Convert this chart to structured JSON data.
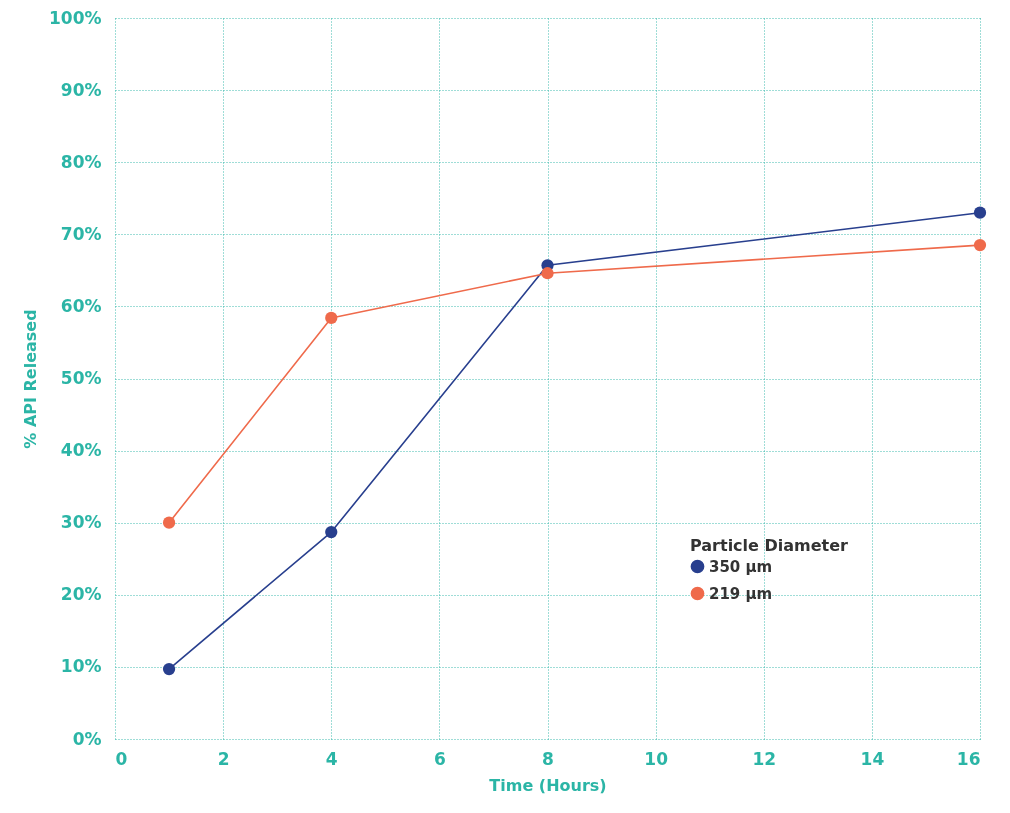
{
  "chart_data": {
    "type": "line",
    "xlabel": "Time (Hours)",
    "ylabel": "% API Released",
    "legend_title": "Particle Diameter",
    "x": [
      1,
      4,
      8,
      16
    ],
    "series": [
      {
        "name": "350 µm",
        "color": "#283f8e",
        "values": [
          9.7,
          28.7,
          65.7,
          73.0
        ]
      },
      {
        "name": "219 µm",
        "color": "#ef6a4b",
        "values": [
          30.0,
          58.4,
          64.6,
          68.5
        ]
      }
    ],
    "xlim": [
      0,
      16
    ],
    "xticks": [
      0,
      2,
      4,
      6,
      8,
      10,
      12,
      14,
      16
    ],
    "ylim": [
      0,
      100
    ],
    "yticks": [
      {
        "value": 0,
        "label": "0%"
      },
      {
        "value": 10,
        "label": "10%"
      },
      {
        "value": 20,
        "label": "20%"
      },
      {
        "value": 30,
        "label": "30%"
      },
      {
        "value": 40,
        "label": "40%"
      },
      {
        "value": 50,
        "label": "50%"
      },
      {
        "value": 60,
        "label": "60%"
      },
      {
        "value": 70,
        "label": "70%"
      },
      {
        "value": 80,
        "label": "80%"
      },
      {
        "value": 90,
        "label": "90%"
      },
      {
        "value": 100,
        "label": "100%"
      }
    ],
    "grid": true,
    "legend": "bottom right",
    "marker": "circle",
    "line_style": "solid"
  }
}
